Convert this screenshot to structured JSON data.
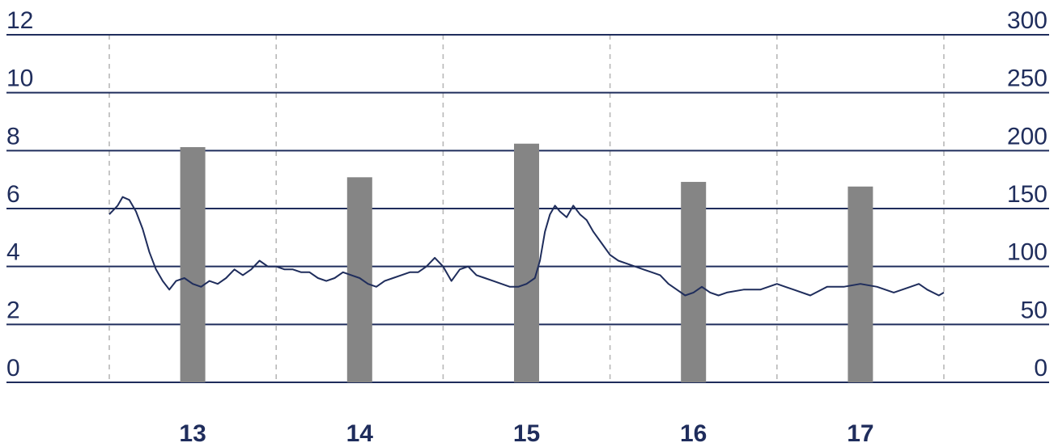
{
  "colors": {
    "axis_text": "#1f2d5c",
    "gridline": "#1f2d5c",
    "vgrid": "#b8b8b8",
    "bar": "#858585",
    "line": "#1f2d5c",
    "background": "#ffffff"
  },
  "chart_data": {
    "type": "bar+line",
    "title": "",
    "grid": true,
    "y_left": {
      "ylim": [
        0,
        12
      ],
      "ticks": [
        "0",
        "2",
        "4",
        "6",
        "8",
        "10",
        "12"
      ]
    },
    "y_right": {
      "ylim": [
        0,
        300
      ],
      "ticks": [
        "0",
        "50",
        "100",
        "150",
        "200",
        "250",
        "300"
      ]
    },
    "x": {
      "xlim": [
        12.5,
        17.5
      ],
      "ticks": [
        "13",
        "14",
        "15",
        "16",
        "17"
      ]
    },
    "bars": {
      "axis": "right",
      "categories": [
        "13",
        "14",
        "15",
        "16",
        "17"
      ],
      "values": [
        203,
        177,
        206,
        173,
        169
      ]
    },
    "line": {
      "axis": "left",
      "points": [
        [
          12.5,
          5.8
        ],
        [
          12.55,
          6.1
        ],
        [
          12.58,
          6.4
        ],
        [
          12.62,
          6.3
        ],
        [
          12.66,
          5.9
        ],
        [
          12.7,
          5.3
        ],
        [
          12.74,
          4.5
        ],
        [
          12.78,
          3.9
        ],
        [
          12.82,
          3.5
        ],
        [
          12.86,
          3.2
        ],
        [
          12.9,
          3.5
        ],
        [
          12.95,
          3.6
        ],
        [
          13.0,
          3.4
        ],
        [
          13.05,
          3.3
        ],
        [
          13.1,
          3.5
        ],
        [
          13.15,
          3.4
        ],
        [
          13.2,
          3.6
        ],
        [
          13.25,
          3.9
        ],
        [
          13.3,
          3.7
        ],
        [
          13.35,
          3.9
        ],
        [
          13.4,
          4.2
        ],
        [
          13.45,
          4.0
        ],
        [
          13.5,
          4.0
        ],
        [
          13.55,
          3.9
        ],
        [
          13.6,
          3.9
        ],
        [
          13.65,
          3.8
        ],
        [
          13.7,
          3.8
        ],
        [
          13.75,
          3.6
        ],
        [
          13.8,
          3.5
        ],
        [
          13.85,
          3.6
        ],
        [
          13.9,
          3.8
        ],
        [
          13.95,
          3.7
        ],
        [
          14.0,
          3.6
        ],
        [
          14.05,
          3.4
        ],
        [
          14.1,
          3.3
        ],
        [
          14.15,
          3.5
        ],
        [
          14.2,
          3.6
        ],
        [
          14.25,
          3.7
        ],
        [
          14.3,
          3.8
        ],
        [
          14.35,
          3.8
        ],
        [
          14.4,
          4.0
        ],
        [
          14.45,
          4.3
        ],
        [
          14.5,
          4.0
        ],
        [
          14.55,
          3.5
        ],
        [
          14.6,
          3.9
        ],
        [
          14.65,
          4.0
        ],
        [
          14.7,
          3.7
        ],
        [
          14.75,
          3.6
        ],
        [
          14.8,
          3.5
        ],
        [
          14.85,
          3.4
        ],
        [
          14.9,
          3.3
        ],
        [
          14.95,
          3.3
        ],
        [
          15.0,
          3.4
        ],
        [
          15.05,
          3.6
        ],
        [
          15.08,
          4.2
        ],
        [
          15.11,
          5.2
        ],
        [
          15.14,
          5.8
        ],
        [
          15.17,
          6.1
        ],
        [
          15.2,
          5.9
        ],
        [
          15.24,
          5.7
        ],
        [
          15.28,
          6.1
        ],
        [
          15.32,
          5.8
        ],
        [
          15.36,
          5.6
        ],
        [
          15.4,
          5.2
        ],
        [
          15.45,
          4.8
        ],
        [
          15.5,
          4.4
        ],
        [
          15.55,
          4.2
        ],
        [
          15.6,
          4.1
        ],
        [
          15.65,
          4.0
        ],
        [
          15.7,
          3.9
        ],
        [
          15.75,
          3.8
        ],
        [
          15.8,
          3.7
        ],
        [
          15.85,
          3.4
        ],
        [
          15.9,
          3.2
        ],
        [
          15.95,
          3.0
        ],
        [
          16.0,
          3.1
        ],
        [
          16.05,
          3.3
        ],
        [
          16.1,
          3.1
        ],
        [
          16.15,
          3.0
        ],
        [
          16.2,
          3.1
        ],
        [
          16.3,
          3.2
        ],
        [
          16.4,
          3.2
        ],
        [
          16.5,
          3.4
        ],
        [
          16.55,
          3.3
        ],
        [
          16.6,
          3.2
        ],
        [
          16.7,
          3.0
        ],
        [
          16.8,
          3.3
        ],
        [
          16.9,
          3.3
        ],
        [
          17.0,
          3.4
        ],
        [
          17.1,
          3.3
        ],
        [
          17.2,
          3.1
        ],
        [
          17.3,
          3.3
        ],
        [
          17.35,
          3.4
        ],
        [
          17.4,
          3.2
        ],
        [
          17.47,
          3.0
        ],
        [
          17.5,
          3.1
        ]
      ]
    }
  }
}
